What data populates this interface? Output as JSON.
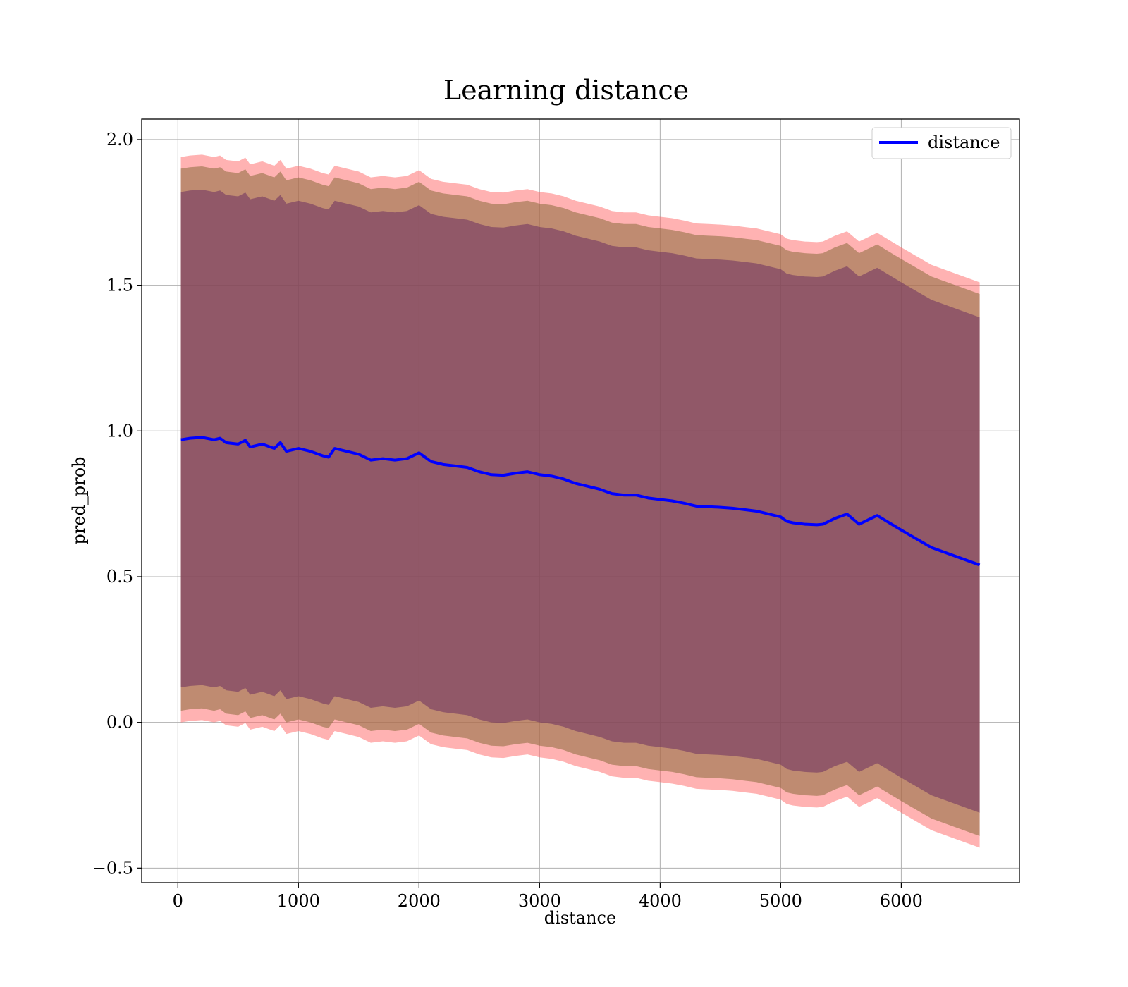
{
  "chart_data": {
    "type": "area",
    "title": "Learning distance",
    "xlabel": "distance",
    "ylabel": "pred_prob",
    "xlim": [
      -300,
      6980
    ],
    "ylim": [
      -0.55,
      2.07
    ],
    "x_ticks": [
      0,
      1000,
      2000,
      3000,
      4000,
      5000,
      6000
    ],
    "y_ticks": [
      -0.5,
      0.0,
      0.5,
      1.0,
      1.5,
      2.0
    ],
    "y_tick_labels": [
      "−0.5",
      "0.0",
      "0.5",
      "1.0",
      "1.5",
      "2.0"
    ],
    "grid": true,
    "legend": {
      "position": "top-right",
      "entries": [
        "distance"
      ]
    },
    "series": [
      {
        "name": "distance",
        "color": "#0000ff",
        "x": [
          25,
          100,
          200,
          300,
          350,
          400,
          500,
          560,
          600,
          700,
          800,
          850,
          900,
          1000,
          1100,
          1200,
          1250,
          1300,
          1400,
          1500,
          1600,
          1700,
          1800,
          1900,
          2000,
          2100,
          2200,
          2300,
          2400,
          2500,
          2600,
          2700,
          2800,
          2900,
          3000,
          3100,
          3200,
          3300,
          3400,
          3500,
          3600,
          3700,
          3800,
          3900,
          4000,
          4100,
          4200,
          4300,
          4400,
          4500,
          4600,
          4700,
          4800,
          4900,
          5000,
          5050,
          5100,
          5200,
          5300,
          5350,
          5450,
          5550,
          5650,
          5800,
          6000,
          6250,
          6650
        ],
        "values": [
          0.97,
          0.975,
          0.978,
          0.97,
          0.975,
          0.96,
          0.955,
          0.968,
          0.945,
          0.955,
          0.94,
          0.96,
          0.93,
          0.94,
          0.93,
          0.915,
          0.91,
          0.94,
          0.93,
          0.92,
          0.9,
          0.905,
          0.9,
          0.905,
          0.925,
          0.895,
          0.885,
          0.88,
          0.875,
          0.86,
          0.85,
          0.848,
          0.855,
          0.86,
          0.85,
          0.845,
          0.835,
          0.82,
          0.81,
          0.8,
          0.785,
          0.78,
          0.78,
          0.77,
          0.765,
          0.76,
          0.752,
          0.742,
          0.74,
          0.738,
          0.735,
          0.73,
          0.725,
          0.715,
          0.705,
          0.69,
          0.685,
          0.68,
          0.678,
          0.68,
          0.7,
          0.715,
          0.68,
          0.71,
          0.66,
          0.6,
          0.54
        ]
      }
    ],
    "bands": [
      {
        "color": "#ff6666",
        "lower_offset": -0.97,
        "upper_offset": 0.97
      },
      {
        "color": "#8b6b3c",
        "lower_offset": -0.93,
        "upper_offset": 0.93
      },
      {
        "color": "#6b2f60",
        "lower_offset": -0.85,
        "upper_offset": 0.85
      }
    ]
  }
}
